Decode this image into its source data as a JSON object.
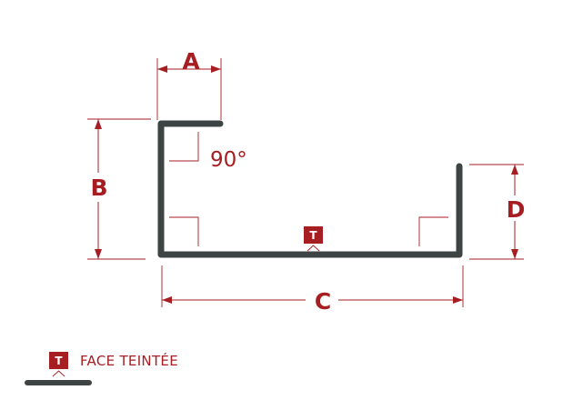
{
  "dimensions": {
    "a": "A",
    "b": "B",
    "c": "C",
    "d": "D"
  },
  "angle_label": "90°",
  "face_badge": "T",
  "legend": {
    "badge": "T",
    "label": "FACE TEINTÉE"
  },
  "colors": {
    "accent": "#a61e22",
    "profile": "#3e4443",
    "background": "#ffffff"
  }
}
